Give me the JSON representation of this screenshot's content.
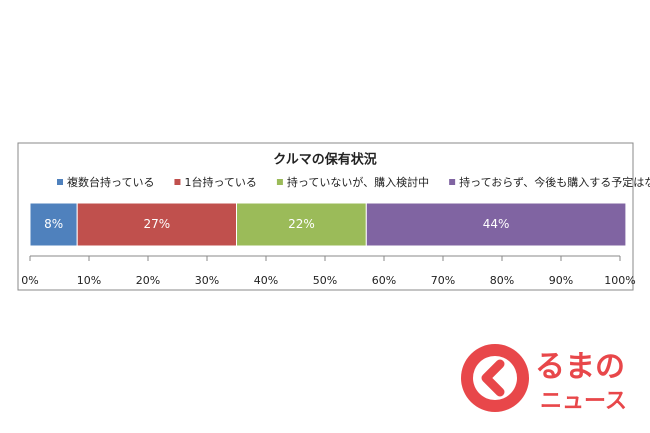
{
  "chart_data": {
    "type": "stacked-bar-horizontal",
    "title": "クルマの保有状況",
    "series": [
      {
        "name": "複数台持っている",
        "color": "#4f81bd",
        "values": [
          8
        ],
        "value_labels": [
          "8%"
        ]
      },
      {
        "name": "1台持っている",
        "color": "#c0504d",
        "values": [
          27
        ],
        "value_labels": [
          "27%"
        ]
      },
      {
        "name": "持っていないが、購入検討中",
        "color": "#9bbb59",
        "values": [
          22
        ],
        "value_labels": [
          "22%"
        ]
      },
      {
        "name": "持っておらず、今後も購入する予定はない",
        "color": "#8064a2",
        "values": [
          44
        ],
        "value_labels": [
          "44%"
        ]
      }
    ],
    "xlim": [
      0,
      100
    ],
    "xticks": [
      {
        "value": 0,
        "label": "0%"
      },
      {
        "value": 10,
        "label": "10%"
      },
      {
        "value": 20,
        "label": "20%"
      },
      {
        "value": 30,
        "label": "30%"
      },
      {
        "value": 40,
        "label": "40%"
      },
      {
        "value": 50,
        "label": "50%"
      },
      {
        "value": 60,
        "label": "60%"
      },
      {
        "value": 70,
        "label": "70%"
      },
      {
        "value": 80,
        "label": "80%"
      },
      {
        "value": 90,
        "label": "90%"
      },
      {
        "value": 100,
        "label": "100%"
      }
    ]
  },
  "watermark": {
    "line1": "るまの",
    "line2": "ニュース"
  }
}
